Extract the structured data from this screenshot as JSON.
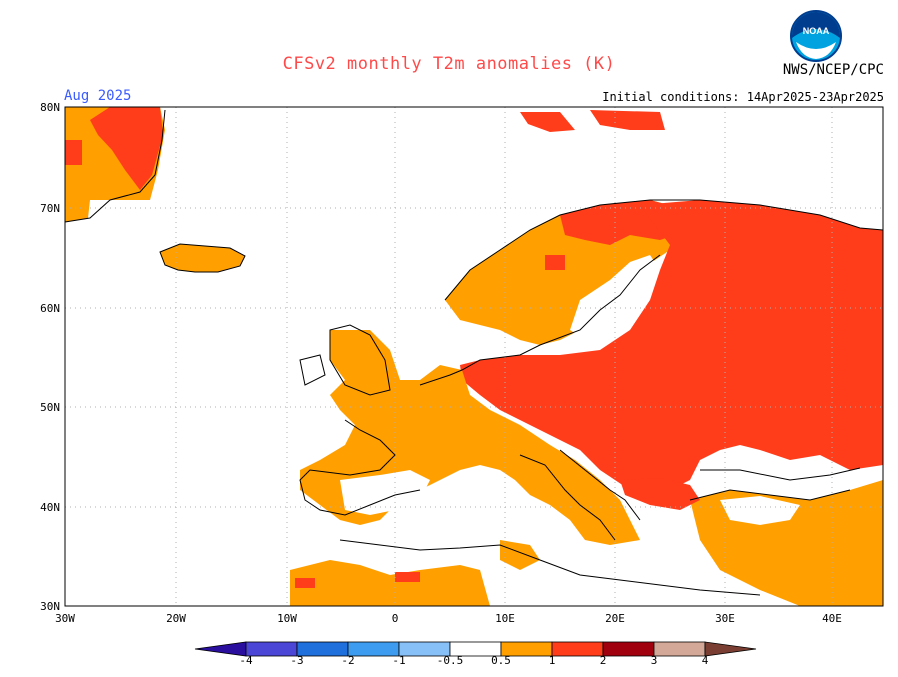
{
  "header": {
    "title": "CFSv2 monthly T2m anomalies (K)",
    "agency": "NWS/NCEP/CPC",
    "logo_text": "NOAA",
    "month": "Aug 2025",
    "initial_conditions": "Initial conditions: 14Apr2025-23Apr2025"
  },
  "axes": {
    "lon_labels": [
      "30W",
      "20W",
      "10W",
      "0",
      "10E",
      "20E",
      "30E",
      "40E"
    ],
    "lat_labels": [
      "80N",
      "70N",
      "60N",
      "50N",
      "40N",
      "30N"
    ]
  },
  "colorbar": {
    "labels": [
      "-4",
      "-3",
      "-2",
      "-1",
      "-0.5",
      "0.5",
      "1",
      "2",
      "3",
      "4"
    ],
    "colors": [
      "#2a0f9e",
      "#4b46d6",
      "#1f6fdc",
      "#3d9bf0",
      "#87bff7",
      "#ffffff",
      "#ff9f00",
      "#ff3d1b",
      "#a0000d",
      "#d4a898",
      "#7a3f32"
    ]
  },
  "anomaly_colors": {
    "weak_warm": "#ff9f00",
    "warm": "#ff3d1b"
  }
}
